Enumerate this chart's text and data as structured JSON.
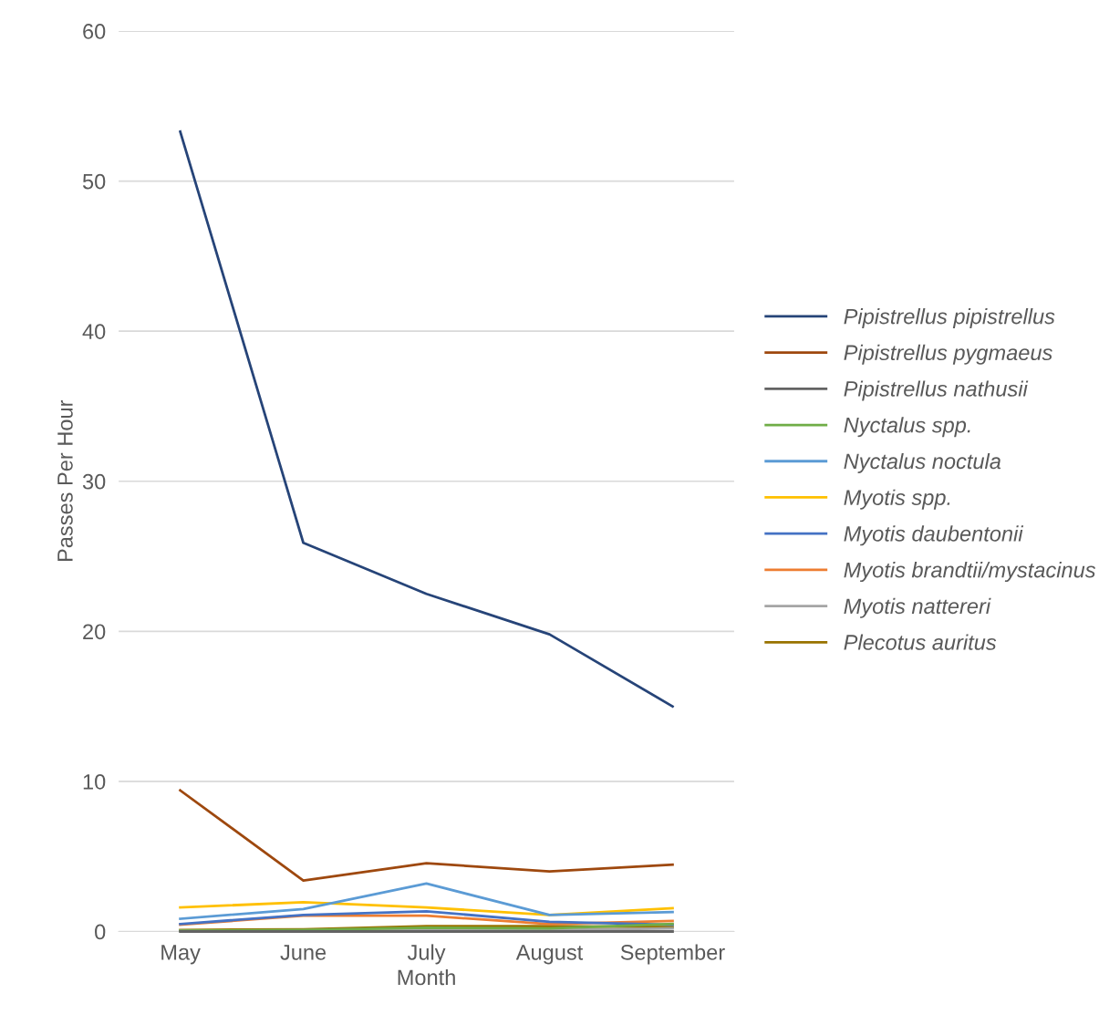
{
  "chart_data": {
    "type": "line",
    "xlabel": "Month",
    "ylabel": "Passes Per Hour",
    "categories": [
      "May",
      "June",
      "July",
      "August",
      "September"
    ],
    "ylim": [
      0,
      60
    ],
    "yticks": [
      0,
      10,
      20,
      30,
      40,
      50,
      60
    ],
    "grid": "y",
    "legend": "right",
    "marker": "none",
    "series": [
      {
        "name": "Pipistrellus pipistrellus",
        "color": "#264478",
        "values": [
          53.3,
          25.9,
          22.5,
          19.8,
          15.0
        ]
      },
      {
        "name": "Pipistrellus pygmaeus",
        "color": "#9e480e",
        "values": [
          9.4,
          3.4,
          4.55,
          4.0,
          4.45
        ]
      },
      {
        "name": "Pipistrellus nathusii",
        "color": "#636363",
        "values": [
          0,
          0,
          0,
          0,
          0
        ]
      },
      {
        "name": "Nyctalus spp.",
        "color": "#70ad47",
        "values": [
          0.05,
          0.1,
          0.25,
          0.2,
          0.5
        ]
      },
      {
        "name": "Nyctalus noctula",
        "color": "#5b9bd5",
        "values": [
          0.85,
          1.5,
          3.2,
          1.1,
          1.3
        ]
      },
      {
        "name": "Myotis spp.",
        "color": "#ffc000",
        "values": [
          1.6,
          1.95,
          1.6,
          1.1,
          1.55
        ]
      },
      {
        "name": "Myotis daubentonii",
        "color": "#4472c4",
        "values": [
          0.5,
          1.1,
          1.35,
          0.65,
          0.45
        ]
      },
      {
        "name": "Myotis brandtii/mystacinus",
        "color": "#ed7d31",
        "values": [
          0.45,
          1.05,
          1.05,
          0.5,
          0.7
        ]
      },
      {
        "name": "Myotis nattereri",
        "color": "#a5a5a5",
        "values": [
          0.05,
          0.05,
          0.1,
          0.1,
          0.2
        ]
      },
      {
        "name": "Plecotus auritus",
        "color": "#997300",
        "values": [
          0.1,
          0.15,
          0.35,
          0.35,
          0.3
        ]
      }
    ]
  }
}
